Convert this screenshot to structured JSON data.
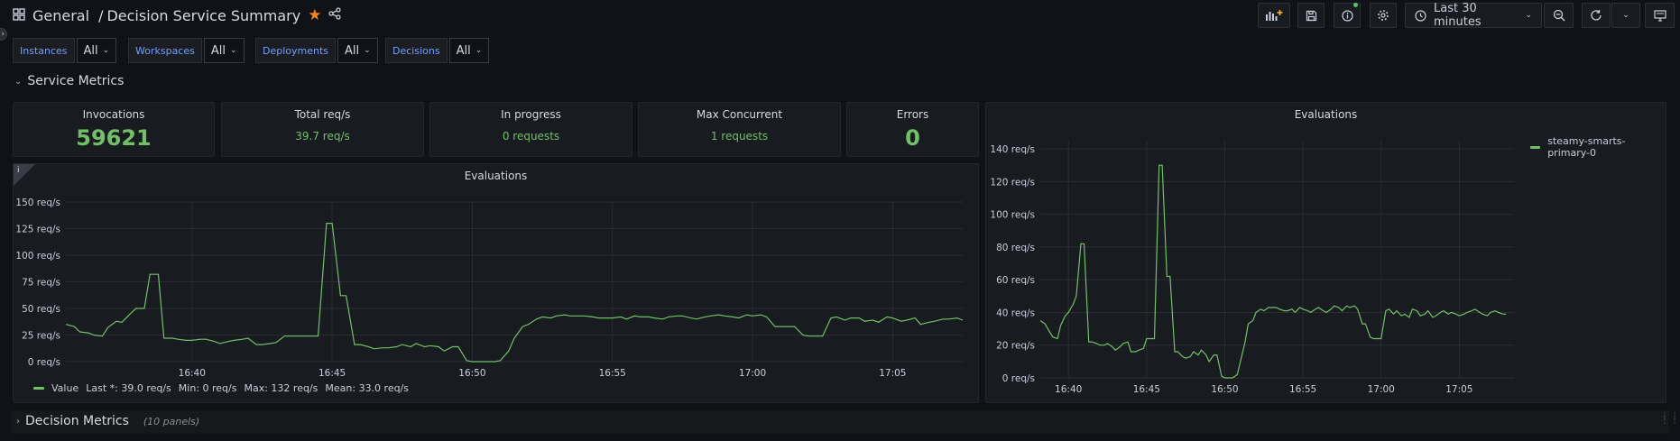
{
  "header": {
    "folder": "General",
    "separator": "/",
    "title": "Decision Service Summary",
    "time_range": "Last 30 minutes"
  },
  "variables": [
    {
      "label": "Instances",
      "value": "All"
    },
    {
      "label": "Workspaces",
      "value": "All"
    },
    {
      "label": "Deployments",
      "value": "All"
    },
    {
      "label": "Decisions",
      "value": "All"
    }
  ],
  "rows": {
    "service_metrics": "Service Metrics",
    "decision_metrics": "Decision Metrics",
    "decision_metrics_count": "(10 panels)"
  },
  "stats": {
    "invocations": {
      "title": "Invocations",
      "value": "59621"
    },
    "total_req": {
      "title": "Total req/s",
      "value": "39.7 req/s"
    },
    "in_progress": {
      "title": "In progress",
      "value": "0 requests"
    },
    "max_concurrent": {
      "title": "Max Concurrent",
      "value": "1 requests"
    },
    "errors": {
      "title": "Errors",
      "value": "0"
    }
  },
  "left_chart": {
    "title": "Evaluations",
    "info_icon": "i",
    "legend": {
      "name": "Value",
      "last": "Last *: 39.0 req/s",
      "min": "Min: 0 req/s",
      "max": "Max: 132 req/s",
      "mean": "Mean: 33.0 req/s"
    }
  },
  "right_chart": {
    "title": "Evaluations",
    "legend": {
      "name": "steamy-smarts-primary-0"
    }
  },
  "colors": {
    "series": "#73bf69",
    "accent": "#f5841f",
    "var_label": "#6e9fff",
    "background": "#111217",
    "panel": "#181b1f"
  },
  "chart_data": [
    {
      "type": "line",
      "title": "Evaluations",
      "y_unit": "req/s",
      "ylim": [
        0,
        150
      ],
      "y_ticks": [
        0,
        25,
        50,
        75,
        100,
        125,
        150
      ],
      "y_tick_labels": [
        "0 req/s",
        "25 req/s",
        "50 req/s",
        "75 req/s",
        "100 req/s",
        "125 req/s",
        "150 req/s"
      ],
      "x_tick_labels": [
        "16:40",
        "16:45",
        "16:50",
        "16:55",
        "17:00",
        "17:05"
      ],
      "x_ticks_min": [
        40,
        45,
        50,
        55,
        60,
        65
      ],
      "xlim_min": [
        35.5,
        67.5
      ],
      "grid": true,
      "legend_position": "bottom-left",
      "series": [
        {
          "name": "Value",
          "color": "#73bf69",
          "x_min": [
            35.5,
            35.8,
            36.0,
            36.3,
            36.5,
            36.8,
            37.0,
            37.3,
            37.5,
            37.8,
            38.0,
            38.3,
            38.5,
            38.8,
            39.0,
            39.3,
            39.5,
            39.8,
            40.0,
            40.3,
            40.5,
            40.8,
            41.0,
            41.3,
            41.5,
            41.8,
            42.0,
            42.3,
            42.5,
            42.8,
            43.0,
            43.3,
            43.5,
            43.8,
            44.0,
            44.3,
            44.5,
            44.8,
            45.0,
            45.3,
            45.5,
            45.8,
            46.0,
            46.3,
            46.5,
            46.8,
            47.0,
            47.3,
            47.5,
            47.8,
            48.0,
            48.3,
            48.5,
            48.8,
            49.0,
            49.3,
            49.5,
            49.8,
            50.0,
            50.3,
            50.5,
            50.8,
            51.0,
            51.3,
            51.5,
            51.8,
            52.0,
            52.3,
            52.5,
            52.8,
            53.0,
            53.3,
            53.5,
            53.8,
            54.0,
            54.3,
            54.5,
            54.8,
            55.0,
            55.3,
            55.5,
            55.8,
            56.0,
            56.3,
            56.5,
            56.8,
            57.0,
            57.3,
            57.5,
            57.8,
            58.0,
            58.3,
            58.5,
            58.8,
            59.0,
            59.3,
            59.5,
            59.8,
            60.0,
            60.3,
            60.5,
            60.8,
            61.0,
            61.3,
            61.5,
            61.8,
            62.0,
            62.3,
            62.5,
            62.8,
            63.0,
            63.3,
            63.5,
            63.8,
            64.0,
            64.3,
            64.5,
            64.8,
            65.0,
            65.3,
            65.5,
            65.8,
            66.0,
            66.3,
            66.5,
            66.8,
            67.0,
            67.3,
            67.5
          ],
          "values": [
            35,
            33,
            28,
            27,
            25,
            24,
            32,
            38,
            37,
            45,
            50,
            50,
            82,
            82,
            22,
            22,
            21,
            20,
            20,
            21,
            21,
            19,
            17,
            19,
            20,
            21,
            22,
            16,
            16,
            17,
            18,
            24,
            24,
            24,
            24,
            24,
            24,
            130,
            130,
            62,
            62,
            16,
            16,
            14,
            12,
            13,
            13,
            14,
            16,
            14,
            17,
            14,
            15,
            14,
            10,
            14,
            14,
            1,
            0,
            0,
            0,
            0,
            1,
            10,
            22,
            33,
            35,
            40,
            42,
            41,
            43,
            44,
            43,
            43,
            43,
            42,
            41,
            41,
            41,
            42,
            40,
            43,
            42,
            42,
            41,
            40,
            42,
            43,
            43,
            41,
            40,
            42,
            43,
            44,
            43,
            42,
            41,
            44,
            43,
            44,
            42,
            33,
            33,
            33,
            33,
            25,
            24,
            24,
            24,
            41,
            42,
            39,
            41,
            41,
            38,
            39,
            37,
            42,
            41,
            38,
            39,
            41,
            35,
            37,
            38,
            40,
            40,
            41,
            39,
            40,
            39
          ]
        }
      ]
    },
    {
      "type": "line",
      "title": "Evaluations",
      "y_unit": "req/s",
      "ylim": [
        0,
        145
      ],
      "y_ticks": [
        0,
        20,
        40,
        60,
        80,
        100,
        120,
        140
      ],
      "y_tick_labels": [
        "0 req/s",
        "20 req/s",
        "40 req/s",
        "60 req/s",
        "80 req/s",
        "100 req/s",
        "120 req/s",
        "140 req/s"
      ],
      "x_tick_labels": [
        "16:40",
        "16:45",
        "16:50",
        "16:55",
        "17:00",
        "17:05"
      ],
      "x_ticks_min": [
        40,
        45,
        50,
        55,
        60,
        65
      ],
      "xlim_min": [
        38.2,
        68.5
      ],
      "grid": true,
      "legend_position": "top-right",
      "series": [
        {
          "name": "steamy-smarts-primary-0",
          "color": "#73bf69",
          "x_min": [
            38.2,
            38.5,
            38.8,
            39.0,
            39.3,
            39.5,
            39.8,
            40.0,
            40.3,
            40.5,
            40.8,
            41.0,
            41.3,
            41.5,
            41.8,
            42.0,
            42.3,
            42.5,
            42.8,
            43.0,
            43.3,
            43.5,
            43.8,
            44.0,
            44.3,
            44.5,
            44.8,
            45.0,
            45.3,
            45.5,
            45.8,
            46.0,
            46.3,
            46.5,
            46.8,
            47.0,
            47.3,
            47.5,
            47.8,
            48.0,
            48.3,
            48.5,
            48.8,
            49.0,
            49.3,
            49.5,
            49.8,
            50.0,
            50.3,
            50.5,
            50.8,
            51.0,
            51.3,
            51.5,
            51.8,
            52.0,
            52.3,
            52.5,
            52.8,
            53.0,
            53.3,
            53.5,
            53.8,
            54.0,
            54.3,
            54.5,
            54.8,
            55.0,
            55.3,
            55.5,
            55.8,
            56.0,
            56.3,
            56.5,
            56.8,
            57.0,
            57.3,
            57.5,
            57.8,
            58.0,
            58.3,
            58.5,
            58.8,
            59.0,
            59.3,
            59.5,
            59.8,
            60.0,
            60.3,
            60.5,
            60.8,
            61.0,
            61.3,
            61.5,
            61.8,
            62.0,
            62.3,
            62.5,
            62.8,
            63.0,
            63.3,
            63.5,
            63.8,
            64.0,
            64.3,
            64.5,
            64.8,
            65.0,
            65.3,
            65.5,
            65.8,
            66.0,
            66.3,
            66.5,
            66.8,
            67.0,
            67.3,
            67.5,
            67.8,
            68.0,
            68.3,
            68.5
          ],
          "values": [
            35,
            33,
            28,
            25,
            24,
            32,
            38,
            40,
            45,
            50,
            82,
            82,
            22,
            22,
            21,
            20,
            20,
            21,
            19,
            17,
            19,
            21,
            22,
            16,
            16,
            17,
            18,
            24,
            24,
            24,
            130,
            130,
            62,
            62,
            16,
            16,
            13,
            12,
            13,
            16,
            14,
            17,
            14,
            10,
            14,
            14,
            1,
            0,
            0,
            0,
            2,
            10,
            22,
            33,
            35,
            40,
            42,
            41,
            43,
            43,
            43,
            42,
            41,
            41,
            42,
            40,
            43,
            42,
            41,
            40,
            42,
            43,
            41,
            40,
            42,
            44,
            43,
            41,
            44,
            43,
            44,
            42,
            33,
            33,
            25,
            24,
            24,
            24,
            41,
            42,
            39,
            41,
            38,
            39,
            37,
            42,
            41,
            38,
            39,
            41,
            37,
            38,
            40,
            41,
            39,
            40,
            39,
            38,
            39,
            40,
            41,
            42,
            40,
            39,
            38,
            40,
            41,
            40,
            39,
            39
          ]
        }
      ]
    }
  ]
}
